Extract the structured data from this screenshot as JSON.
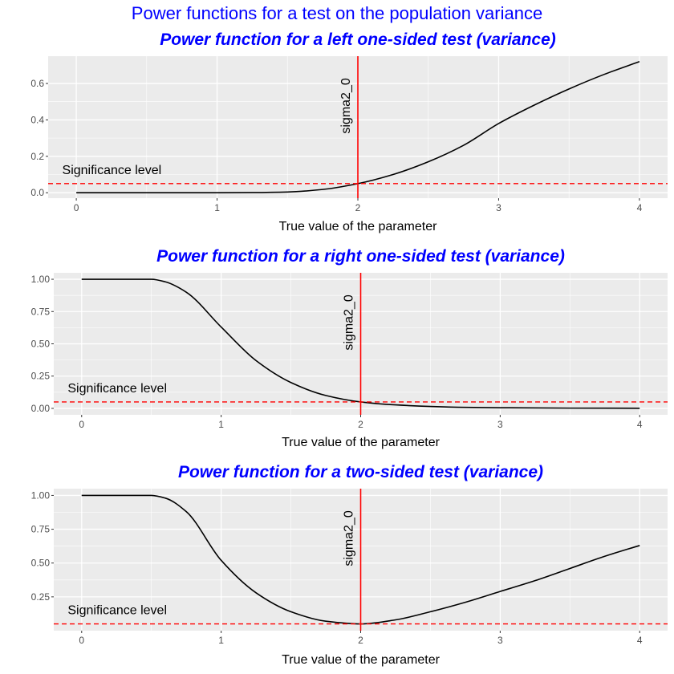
{
  "figure": {
    "title": "Power functions for a test on the population variance"
  },
  "colors": {
    "title": "#0000ff",
    "panel_background": "#ebebeb",
    "grid": "#ffffff",
    "curve": "#000000",
    "reference_lines": "#ff0000"
  },
  "chart_data": [
    {
      "type": "line",
      "title": "Power function for a left one-sided test (variance)",
      "xlabel": "True value of the parameter",
      "ylabel": "",
      "xlim": [
        -0.2,
        4.2
      ],
      "ylim": [
        -0.03,
        0.75
      ],
      "x_ticks": [
        0,
        1,
        2,
        3,
        4
      ],
      "x_tick_labels": [
        "0",
        "1",
        "2",
        "3",
        "4"
      ],
      "y_ticks": [
        0.0,
        0.2,
        0.4,
        0.6
      ],
      "y_tick_labels": [
        "0.0",
        "0.2",
        "0.4",
        "0.6"
      ],
      "grid": true,
      "series": [
        {
          "x": [
            0,
            0.25,
            0.5,
            0.75,
            1.0,
            1.25,
            1.5,
            1.75,
            2.0,
            2.25,
            2.5,
            2.75,
            3.0,
            3.25,
            3.5,
            3.75,
            4.0
          ],
          "values": [
            0.0,
            0.0,
            0.0,
            0.0,
            0.0,
            0.001,
            0.004,
            0.018,
            0.05,
            0.1,
            0.17,
            0.26,
            0.38,
            0.48,
            0.57,
            0.65,
            0.72
          ]
        }
      ],
      "hline": {
        "y": 0.05,
        "style": "dashed",
        "label": "Significance level"
      },
      "vline": {
        "x": 2,
        "label": "sigma2_0"
      }
    },
    {
      "type": "line",
      "title": "Power function for a right one-sided test (variance)",
      "xlabel": "True value of the parameter",
      "ylabel": "",
      "xlim": [
        -0.2,
        4.2
      ],
      "ylim": [
        -0.05,
        1.05
      ],
      "x_ticks": [
        0,
        1,
        2,
        3,
        4
      ],
      "x_tick_labels": [
        "0",
        "1",
        "2",
        "3",
        "4"
      ],
      "y_ticks": [
        0.0,
        0.25,
        0.5,
        0.75,
        1.0
      ],
      "y_tick_labels": [
        "0.00",
        "0.25",
        "0.50",
        "0.75",
        "1.00"
      ],
      "grid": true,
      "series": [
        {
          "x": [
            0,
            0.25,
            0.5,
            0.6,
            0.75,
            1.0,
            1.25,
            1.5,
            1.75,
            2.0,
            2.25,
            2.5,
            2.75,
            3.0,
            3.5,
            4.0
          ],
          "values": [
            1.0,
            1.0,
            1.0,
            0.98,
            0.9,
            0.63,
            0.37,
            0.2,
            0.1,
            0.05,
            0.027,
            0.015,
            0.008,
            0.005,
            0.002,
            0.001
          ]
        }
      ],
      "hline": {
        "y": 0.05,
        "style": "dashed",
        "label": "Significance level"
      },
      "vline": {
        "x": 2,
        "label": "sigma2_0"
      }
    },
    {
      "type": "line",
      "title": "Power function for a two-sided test (variance)",
      "xlabel": "True value of the parameter",
      "ylabel": "",
      "xlim": [
        -0.2,
        4.2
      ],
      "ylim": [
        0.0,
        1.05
      ],
      "x_ticks": [
        0,
        1,
        2,
        3,
        4
      ],
      "x_tick_labels": [
        "0",
        "1",
        "2",
        "3",
        "4"
      ],
      "y_ticks": [
        0.25,
        0.5,
        0.75,
        1.0
      ],
      "y_tick_labels": [
        "0.25",
        "0.50",
        "0.75",
        "1.00"
      ],
      "grid": true,
      "series": [
        {
          "x": [
            0,
            0.25,
            0.5,
            0.6,
            0.75,
            1.0,
            1.25,
            1.5,
            1.75,
            2.0,
            2.25,
            2.5,
            2.75,
            3.0,
            3.25,
            3.5,
            3.75,
            4.0
          ],
          "values": [
            1.0,
            1.0,
            1.0,
            0.98,
            0.88,
            0.52,
            0.28,
            0.14,
            0.07,
            0.05,
            0.08,
            0.14,
            0.21,
            0.29,
            0.37,
            0.46,
            0.55,
            0.63
          ]
        }
      ],
      "hline": {
        "y": 0.05,
        "style": "dashed",
        "label": "Significance level"
      },
      "vline": {
        "x": 2,
        "label": "sigma2_0"
      }
    }
  ]
}
